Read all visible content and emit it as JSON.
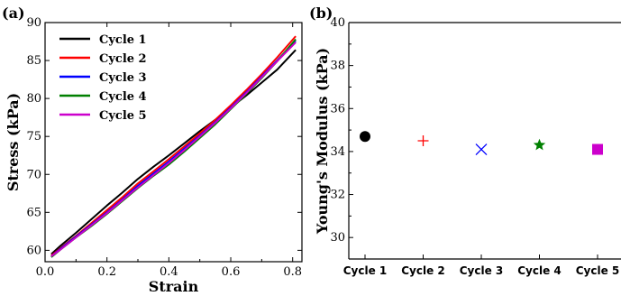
{
  "figure": {
    "panel_a_label": "(a)",
    "panel_b_label": "(b)"
  },
  "chart_data": [
    {
      "type": "line",
      "panel": "(a)",
      "xlabel": "Strain",
      "ylabel": "Stress (kPa)",
      "xlim": [
        0.0,
        0.83
      ],
      "ylim": [
        58.5,
        90
      ],
      "xticks": [
        "0.0",
        "0.2",
        "0.4",
        "0.6",
        "0.8"
      ],
      "yticks": [
        "60",
        "65",
        "70",
        "75",
        "80",
        "85",
        "90"
      ],
      "legend_position": "top-left",
      "grid": false,
      "series": [
        {
          "name": "Cycle 1",
          "color": "#000000",
          "x": [
            0.02,
            0.05,
            0.1,
            0.15,
            0.2,
            0.25,
            0.3,
            0.35,
            0.4,
            0.45,
            0.5,
            0.55,
            0.6,
            0.65,
            0.7,
            0.75,
            0.81
          ],
          "y": [
            59.5,
            60.6,
            62.3,
            64.1,
            65.9,
            67.6,
            69.4,
            71.0,
            72.5,
            74.1,
            75.7,
            77.2,
            78.8,
            80.4,
            82.1,
            83.8,
            86.4
          ]
        },
        {
          "name": "Cycle 2",
          "color": "#ff0000",
          "x": [
            0.02,
            0.05,
            0.1,
            0.15,
            0.2,
            0.25,
            0.3,
            0.35,
            0.4,
            0.45,
            0.5,
            0.55,
            0.6,
            0.65,
            0.7,
            0.75,
            0.81
          ],
          "y": [
            59.3,
            60.3,
            61.9,
            63.6,
            65.3,
            67.0,
            68.8,
            70.4,
            72.0,
            73.7,
            75.4,
            77.2,
            79.1,
            81.1,
            83.2,
            85.4,
            88.2
          ]
        },
        {
          "name": "Cycle 3",
          "color": "#0000ff",
          "x": [
            0.02,
            0.05,
            0.1,
            0.15,
            0.2,
            0.25,
            0.3,
            0.35,
            0.4,
            0.45,
            0.5,
            0.55,
            0.6,
            0.65,
            0.7,
            0.75,
            0.81
          ],
          "y": [
            59.2,
            60.2,
            61.8,
            63.4,
            65.0,
            66.7,
            68.5,
            70.1,
            71.7,
            73.4,
            75.1,
            76.9,
            78.8,
            80.8,
            82.9,
            85.0,
            87.6
          ]
        },
        {
          "name": "Cycle 4",
          "color": "#008000",
          "x": [
            0.02,
            0.05,
            0.1,
            0.15,
            0.2,
            0.25,
            0.3,
            0.35,
            0.4,
            0.45,
            0.5,
            0.55,
            0.6,
            0.65,
            0.7,
            0.75,
            0.81
          ],
          "y": [
            59.1,
            60.1,
            61.7,
            63.2,
            64.8,
            66.5,
            68.2,
            69.8,
            71.3,
            73.0,
            74.8,
            76.6,
            78.6,
            80.6,
            82.7,
            84.9,
            87.8
          ]
        },
        {
          "name": "Cycle 5",
          "color": "#cc00cc",
          "x": [
            0.02,
            0.05,
            0.1,
            0.15,
            0.2,
            0.25,
            0.3,
            0.35,
            0.4,
            0.45,
            0.5,
            0.55,
            0.6,
            0.65,
            0.7,
            0.75,
            0.81
          ],
          "y": [
            59.2,
            60.1,
            61.7,
            63.3,
            64.9,
            66.6,
            68.3,
            69.9,
            71.5,
            73.2,
            75.0,
            76.8,
            78.7,
            80.7,
            82.8,
            84.9,
            87.4
          ]
        }
      ]
    },
    {
      "type": "scatter",
      "panel": "(b)",
      "xlabel": "",
      "ylabel": "Young's Modulus (kPa)",
      "ylim": [
        29,
        40
      ],
      "yticks": [
        "30",
        "32",
        "34",
        "36",
        "38",
        "40"
      ],
      "categories": [
        "Cycle 1",
        "Cycle 2",
        "Cycle 3",
        "Cycle 4",
        "Cycle 5"
      ],
      "grid": false,
      "points": [
        {
          "category": "Cycle 1",
          "value": 34.7,
          "marker": "circle",
          "color": "#000000"
        },
        {
          "category": "Cycle 2",
          "value": 34.5,
          "marker": "plus",
          "color": "#ff0000"
        },
        {
          "category": "Cycle 3",
          "value": 34.1,
          "marker": "cross",
          "color": "#0000ff"
        },
        {
          "category": "Cycle 4",
          "value": 34.3,
          "marker": "star",
          "color": "#008000"
        },
        {
          "category": "Cycle 5",
          "value": 34.1,
          "marker": "square",
          "color": "#cc00cc"
        }
      ]
    }
  ]
}
